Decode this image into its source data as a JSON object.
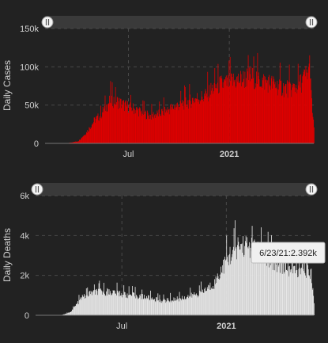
{
  "colors": {
    "background": "#222222",
    "cases_bar": "#e00000",
    "deaths_bar": "#e6e6e6",
    "slider_track": "#3a3a3a"
  },
  "chart_data": [
    {
      "type": "bar",
      "ylabel": "Daily Cases",
      "ylim": [
        0,
        150000
      ],
      "yticks": [
        0,
        50000,
        100000,
        150000
      ],
      "ytick_labels": [
        "0",
        "50k",
        "100k",
        "150k"
      ],
      "xticks": [
        {
          "label": "Jul",
          "bold": false,
          "day": 152
        },
        {
          "label": "2021",
          "bold": true,
          "day": 336
        }
      ],
      "x_range_days": [
        0,
        490
      ],
      "grid": true,
      "bar_color": "#e00000",
      "series": [
        {
          "values_profile": [
            [
              0,
              0
            ],
            [
              40,
              200
            ],
            [
              60,
              3000
            ],
            [
              75,
              15000
            ],
            [
              90,
              32000
            ],
            [
              100,
              38000
            ],
            [
              110,
              50000
            ],
            [
              120,
              60000
            ],
            [
              130,
              58000
            ],
            [
              145,
              52000
            ],
            [
              160,
              48000
            ],
            [
              175,
              43000
            ],
            [
              190,
              38000
            ],
            [
              205,
              40000
            ],
            [
              220,
              45000
            ],
            [
              240,
              52000
            ],
            [
              260,
              57000
            ],
            [
              275,
              62000
            ],
            [
              290,
              64000
            ],
            [
              305,
              75000
            ],
            [
              315,
              80000
            ],
            [
              330,
              82000
            ],
            [
              345,
              86000
            ],
            [
              360,
              88000
            ],
            [
              375,
              92000
            ],
            [
              390,
              87000
            ],
            [
              405,
              84000
            ],
            [
              420,
              80000
            ],
            [
              435,
              76000
            ],
            [
              450,
              75000
            ],
            [
              465,
              82000
            ],
            [
              475,
              94000
            ],
            [
              482,
              100000
            ],
            [
              487,
              45000
            ],
            [
              490,
              20000
            ]
          ]
        }
      ]
    },
    {
      "type": "bar",
      "ylabel": "Daily Deaths",
      "ylim": [
        0,
        6000
      ],
      "yticks": [
        0,
        2000,
        4000,
        6000
      ],
      "ytick_labels": [
        "0",
        "2k",
        "4k",
        "6k"
      ],
      "xticks": [
        {
          "label": "Jul",
          "bold": false,
          "day": 152
        },
        {
          "label": "2021",
          "bold": true,
          "day": 336
        }
      ],
      "x_range_days": [
        0,
        490
      ],
      "grid": true,
      "bar_color": "#e6e6e6",
      "series": [
        {
          "values_profile": [
            [
              0,
              0
            ],
            [
              45,
              10
            ],
            [
              60,
              150
            ],
            [
              70,
              500
            ],
            [
              80,
              900
            ],
            [
              90,
              1100
            ],
            [
              100,
              1200
            ],
            [
              110,
              1250
            ],
            [
              120,
              1260
            ],
            [
              135,
              1220
            ],
            [
              150,
              1150
            ],
            [
              165,
              1080
            ],
            [
              180,
              1020
            ],
            [
              195,
              950
            ],
            [
              210,
              850
            ],
            [
              225,
              780
            ],
            [
              240,
              820
            ],
            [
              255,
              900
            ],
            [
              270,
              1000
            ],
            [
              285,
              1150
            ],
            [
              300,
              1350
            ],
            [
              315,
              1700
            ],
            [
              325,
              2300
            ],
            [
              335,
              2900
            ],
            [
              345,
              3300
            ],
            [
              355,
              3600
            ],
            [
              365,
              3700
            ],
            [
              375,
              3650
            ],
            [
              385,
              3500
            ],
            [
              395,
              3300
            ],
            [
              405,
              3100
            ],
            [
              415,
              2900
            ],
            [
              430,
              2700
            ],
            [
              445,
              2500
            ],
            [
              460,
              2400
            ],
            [
              475,
              2392
            ],
            [
              485,
              2300
            ],
            [
              490,
              600
            ]
          ]
        }
      ],
      "tooltip": {
        "label": "6/23/21:2.392k",
        "day": 475
      }
    }
  ]
}
